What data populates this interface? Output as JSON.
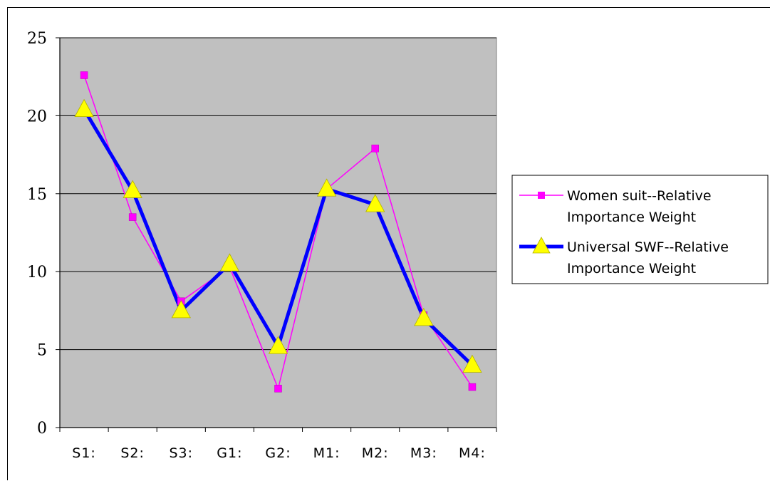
{
  "chart_data": {
    "type": "line",
    "categories": [
      "S1:",
      "S2:",
      "S3:",
      "G1:",
      "G2:",
      "M1:",
      "M2:",
      "M3:",
      "M4:"
    ],
    "series": [
      {
        "name": "Women suit--Relative Importance Weight",
        "name_lines": [
          "Women suit--Relative",
          "Importance Weight"
        ],
        "color": "#FF00FF",
        "marker": "square",
        "values": [
          22.6,
          13.5,
          8.1,
          10.3,
          2.5,
          15.3,
          17.9,
          7.2,
          2.6
        ]
      },
      {
        "name": "Universal SWF--Relative Importance Weight",
        "name_lines": [
          "Universal SWF--Relative",
          "Importance Weight"
        ],
        "color": "#0000FF",
        "marker_color": "#FFFF00",
        "marker": "triangle",
        "values": [
          20.4,
          15.2,
          7.5,
          10.5,
          5.2,
          15.3,
          14.3,
          7.0,
          4.0
        ]
      }
    ],
    "yticks": [
      0,
      5,
      10,
      15,
      20,
      25
    ],
    "ylim": [
      0,
      25
    ],
    "grid": true,
    "plot_background": "#C0C0C0",
    "legend_position": "right"
  }
}
